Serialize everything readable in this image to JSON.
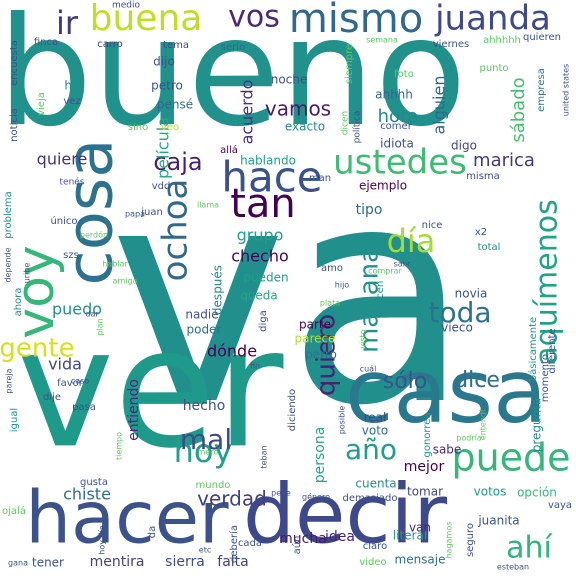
{
  "cloud": {
    "words": [
      {
        "text": "va",
        "color": "#21908d"
      },
      {
        "text": "bueno",
        "color": "#21918c"
      },
      {
        "text": "ver",
        "color": "#1f998a"
      },
      {
        "text": "decir",
        "color": "#3e4989"
      },
      {
        "text": "hacer",
        "color": "#3b528b"
      },
      {
        "text": "casa",
        "color": "#2a788e"
      },
      {
        "text": "cosa",
        "color": "#2c728e"
      },
      {
        "text": "voy",
        "color": "#35b779"
      },
      {
        "text": "puede",
        "color": "#35b779"
      },
      {
        "text": "buena",
        "color": "#bddf26"
      },
      {
        "text": "mismo",
        "color": "#31688e"
      },
      {
        "text": "juanda",
        "color": "#3e4a89"
      },
      {
        "text": "vos",
        "color": "#472a7a"
      },
      {
        "text": "ir",
        "color": "#453882"
      },
      {
        "text": "hace",
        "color": "#3b528b"
      },
      {
        "text": "ustedes",
        "color": "#3dbc74"
      },
      {
        "text": "tan",
        "color": "#440154"
      },
      {
        "text": "día",
        "color": "#a5db36"
      },
      {
        "text": "ochoa",
        "color": "#31688e"
      },
      {
        "text": "mañana",
        "color": "#21918c"
      },
      {
        "text": "aquímenos",
        "color": "#20a386"
      },
      {
        "text": "hoy",
        "color": "#1fa187"
      },
      {
        "text": "año",
        "color": "#1f9f88"
      },
      {
        "text": "ahí",
        "color": "#31b57b"
      },
      {
        "text": "verdad",
        "color": "#433e85"
      },
      {
        "text": "quiero",
        "color": "#482173"
      },
      {
        "text": "mal",
        "color": "#3e4a89"
      },
      {
        "text": "gente",
        "color": "#d5e21a"
      },
      {
        "text": "toda",
        "color": "#2c728e"
      },
      {
        "text": "sólo",
        "color": "#3b528b"
      },
      {
        "text": "dice",
        "color": "#2e6e8e"
      },
      {
        "text": "caja",
        "color": "#481f70"
      },
      {
        "text": "chiste",
        "color": "#2d708e"
      },
      {
        "text": "quiere",
        "color": "#46327e"
      },
      {
        "text": "vamos",
        "color": "#481b6d"
      },
      {
        "text": "hora",
        "color": "#23898e"
      },
      {
        "text": "alguien",
        "color": "#31678e"
      },
      {
        "text": "película",
        "color": "#22a785"
      },
      {
        "text": "acuerdo",
        "color": "#46337f"
      },
      {
        "text": "sábado",
        "color": "#46c06f"
      },
      {
        "text": "marica",
        "color": "#453781"
      },
      {
        "text": "puedo",
        "color": "#21918c"
      },
      {
        "text": "grupo",
        "color": "#1fa088"
      },
      {
        "text": "checho",
        "color": "#440154"
      },
      {
        "text": "tipo",
        "color": "#31688e"
      },
      {
        "text": "dónde",
        "color": "#440154"
      },
      {
        "text": "vida",
        "color": "#3e4989"
      },
      {
        "text": "entiendo",
        "color": "#482878"
      },
      {
        "text": "mejor",
        "color": "#440154"
      },
      {
        "text": "hecho",
        "color": "#3b528b"
      },
      {
        "text": "persona",
        "color": "#22a884"
      },
      {
        "text": "idea",
        "color": "#482475"
      },
      {
        "text": "mucha",
        "color": "#481a6c"
      },
      {
        "text": "mentira",
        "color": "#433e85"
      },
      {
        "text": "sierra",
        "color": "#3e4c8a"
      },
      {
        "text": "falta",
        "color": "#414287"
      },
      {
        "text": "mensaje",
        "color": "#2e6f8e"
      },
      {
        "text": "tener",
        "color": "#3b518b"
      },
      {
        "text": "literal",
        "color": "#1f9e89"
      },
      {
        "text": "van",
        "color": "#482677"
      },
      {
        "text": "juanita",
        "color": "#3b528b"
      },
      {
        "text": "votos",
        "color": "#1f9a8a"
      },
      {
        "text": "opción",
        "color": "#35b779"
      },
      {
        "text": "tomar",
        "color": "#3f4788"
      },
      {
        "text": "cuenta",
        "color": "#21918c"
      },
      {
        "text": "sabe",
        "color": "#482878"
      },
      {
        "text": "voto",
        "color": "#2e6e8e"
      },
      {
        "text": "real",
        "color": "#404688"
      },
      {
        "text": "novia",
        "color": "#3b528b"
      },
      {
        "text": "vieco",
        "color": "#3b528b"
      },
      {
        "text": "parte",
        "color": "#440154"
      },
      {
        "text": "perro",
        "color": "#2c738e"
      },
      {
        "text": "parece",
        "color": "#b5de2b"
      },
      {
        "text": "poder",
        "color": "#2f6b8e"
      },
      {
        "text": "nadie",
        "color": "#3b528b"
      },
      {
        "text": "después",
        "color": "#25848e"
      },
      {
        "text": "queda",
        "color": "#22a785"
      },
      {
        "text": "pueden",
        "color": "#1f9f88"
      },
      {
        "text": "hablando",
        "color": "#1fa088"
      },
      {
        "text": "ejemplo",
        "color": "#440154"
      },
      {
        "text": "exacto",
        "color": "#23898e"
      },
      {
        "text": "digo",
        "color": "#3e4989"
      },
      {
        "text": "idiota",
        "color": "#3b528b"
      },
      {
        "text": "noche",
        "color": "#3b528b"
      },
      {
        "text": "petro",
        "color": "#3b528b"
      },
      {
        "text": "pensé",
        "color": "#31688e"
      },
      {
        "text": "dijo",
        "color": "#3b528b"
      },
      {
        "text": "tema",
        "color": "#3e4a89"
      },
      {
        "text": "serio",
        "color": "#31688e"
      },
      {
        "text": "carro",
        "color": "#433e85"
      },
      {
        "text": "medio",
        "color": "#3b528b"
      },
      {
        "text": "finca",
        "color": "#3b528b"
      },
      {
        "text": "noticia",
        "color": "#3b528b"
      },
      {
        "text": "encuesta",
        "color": "#3b528b"
      },
      {
        "text": "vieja",
        "color": "#5ec962"
      },
      {
        "text": "vez",
        "color": "#3b528b"
      },
      {
        "text": "hp",
        "color": "#21918c"
      },
      {
        "text": "ahhhh",
        "color": "#31688e"
      },
      {
        "text": "ahhhhh",
        "color": "#5ec962"
      },
      {
        "text": "quieren",
        "color": "#3b528b"
      },
      {
        "text": "viernes",
        "color": "#3b528b"
      },
      {
        "text": "semana",
        "color": "#5ec962"
      },
      {
        "text": "siempre",
        "color": "#5ec962"
      },
      {
        "text": "foto",
        "color": "#5ec962"
      },
      {
        "text": "comer",
        "color": "#3b528b"
      },
      {
        "text": "dicen",
        "color": "#5ec962"
      },
      {
        "text": "política",
        "color": "#3b528b"
      },
      {
        "text": "punto",
        "color": "#5ec962"
      },
      {
        "text": "empresa",
        "color": "#2c728e"
      },
      {
        "text": "united states",
        "color": "#3b528b"
      },
      {
        "text": "veo",
        "color": "#b5de2b"
      },
      {
        "text": "sino",
        "color": "#5ec962"
      },
      {
        "text": "tenés",
        "color": "#3b528b"
      },
      {
        "text": "allá",
        "color": "#440154"
      },
      {
        "text": "vdd",
        "color": "#3b528b"
      },
      {
        "text": "juan",
        "color": "#3b528b"
      },
      {
        "text": "man",
        "color": "#3b528b"
      },
      {
        "text": "misma",
        "color": "#3b528b"
      },
      {
        "text": "llama",
        "color": "#5ec962"
      },
      {
        "text": "papá",
        "color": "#3b528b"
      },
      {
        "text": "único",
        "color": "#3b528b"
      },
      {
        "text": "perdón",
        "color": "#5ec962"
      },
      {
        "text": "hablar",
        "color": "#5ec962"
      },
      {
        "text": "amigo",
        "color": "#5ec962"
      },
      {
        "text": "szs",
        "color": "#3b528b"
      },
      {
        "text": "problema",
        "color": "#21918c"
      },
      {
        "text": "depende",
        "color": "#3b528b"
      },
      {
        "text": "uribe",
        "color": "#3b528b"
      },
      {
        "text": "ahora",
        "color": "#21918c"
      },
      {
        "text": "dar",
        "color": "#3b528b"
      },
      {
        "text": "plan",
        "color": "#5ec962"
      },
      {
        "text": "hijo",
        "color": "#3b528b"
      },
      {
        "text": "plata",
        "color": "#5ec962"
      },
      {
        "text": "amo",
        "color": "#3b528b"
      },
      {
        "text": "nice",
        "color": "#3b528b"
      },
      {
        "text": "x2",
        "color": "#3b528b"
      },
      {
        "text": "total",
        "color": "#21918c"
      },
      {
        "text": "comprar",
        "color": "#5ec962"
      },
      {
        "text": "salir",
        "color": "#3b528b"
      },
      {
        "text": "diferente",
        "color": "#3b528b"
      },
      {
        "text": "básicamente",
        "color": "#21918c"
      },
      {
        "text": "visto",
        "color": "#5ec962"
      },
      {
        "text": "hacen",
        "color": "#21918c"
      },
      {
        "text": "diga",
        "color": "#3b528b"
      },
      {
        "text": "favor",
        "color": "#3b528b"
      },
      {
        "text": "dije",
        "color": "#3b528b"
      },
      {
        "text": "pasa",
        "color": "#3b528b"
      },
      {
        "text": "igual",
        "color": "#21918c"
      },
      {
        "text": "caso",
        "color": "#3b528b"
      },
      {
        "text": "pareja",
        "color": "#3b528b"
      },
      {
        "text": "fin",
        "color": "#3b528b"
      },
      {
        "text": "cuál",
        "color": "#3b528b"
      },
      {
        "text": "momento",
        "color": "#3b528b"
      },
      {
        "text": "diciendo",
        "color": "#3b528b"
      },
      {
        "text": "pregunta",
        "color": "#21918c"
      },
      {
        "text": "entendí",
        "color": "#5ec962"
      },
      {
        "text": "gonorrea",
        "color": "#21918c"
      },
      {
        "text": "podría",
        "color": "#5ec962"
      },
      {
        "text": "posible",
        "color": "#3b528b"
      },
      {
        "text": "tiempo",
        "color": "#5ec962"
      },
      {
        "text": "mero",
        "color": "#5ec962"
      },
      {
        "text": "teban",
        "color": "#3b528b"
      },
      {
        "text": "gusta",
        "color": "#3b528b"
      },
      {
        "text": "mundo",
        "color": "#5ec962"
      },
      {
        "text": "peye",
        "color": "#3b528b"
      },
      {
        "text": "género",
        "color": "#3b528b"
      },
      {
        "text": "demasiado",
        "color": "#3b528b"
      },
      {
        "text": "vaya",
        "color": "#3b528b"
      },
      {
        "text": "ojalá",
        "color": "#5ec962"
      },
      {
        "text": "da",
        "color": "#3b528b"
      },
      {
        "text": "debería",
        "color": "#3b528b"
      },
      {
        "text": "cada",
        "color": "#3b528b"
      },
      {
        "text": "aún",
        "color": "#3b528b"
      },
      {
        "text": "etc",
        "color": "#3b528b"
      },
      {
        "text": "claro",
        "color": "#3b528b"
      },
      {
        "text": "hagamos",
        "color": "#5ec962"
      },
      {
        "text": "seguro",
        "color": "#3b528b"
      },
      {
        "text": "video",
        "color": "#5ec962"
      },
      {
        "text": "esteban",
        "color": "#3b528b"
      },
      {
        "text": "gana",
        "color": "#3b528b"
      },
      {
        "text": "hoy día",
        "color": "#3b528b"
      }
    ]
  }
}
